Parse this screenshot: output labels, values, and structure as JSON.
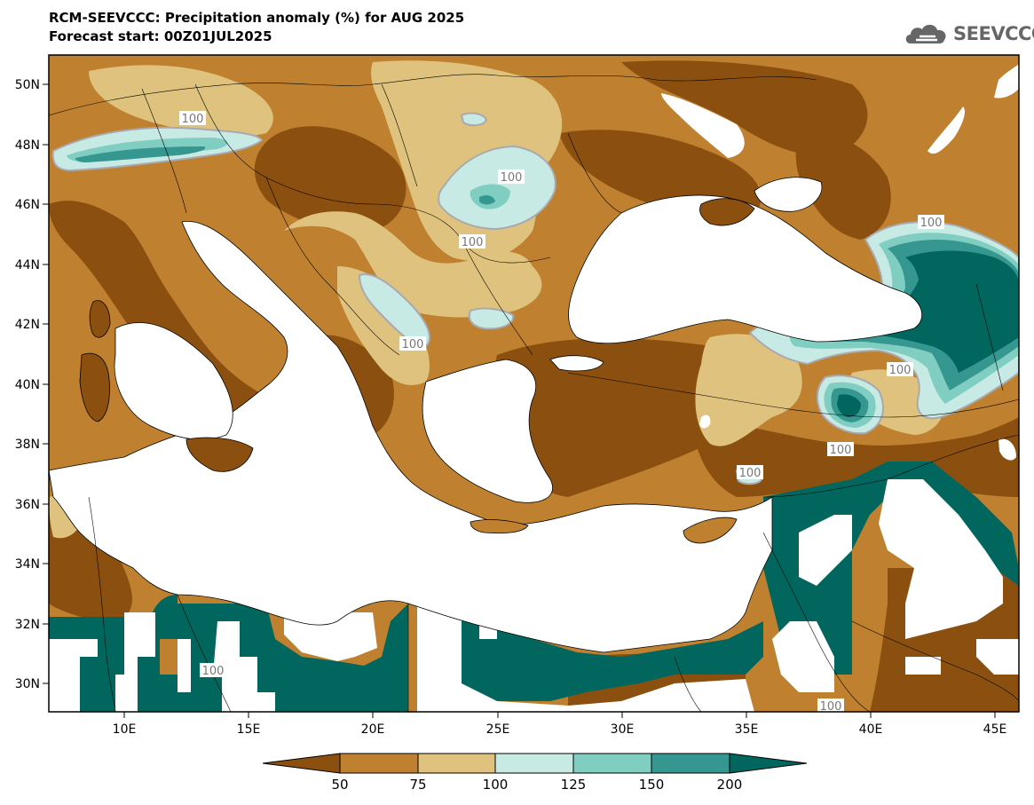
{
  "header": {
    "title_line1": "RCM-SEEVCCC: Precipitation anomaly (%) for AUG 2025",
    "title_line2": "Forecast start: 00Z01JUL2025"
  },
  "logo": {
    "text": "SEEVCCC",
    "icon": "cloud-icon",
    "color": "#666666"
  },
  "map": {
    "lat_labels": [
      "50N",
      "48N",
      "46N",
      "44N",
      "42N",
      "40N",
      "38N",
      "36N",
      "34N",
      "32N",
      "30N"
    ],
    "lon_labels": [
      "10E",
      "15E",
      "20E",
      "25E",
      "30E",
      "35E",
      "40E",
      "45E"
    ],
    "contour_labels": [
      "100",
      "100",
      "100",
      "100",
      "100",
      "100",
      "100",
      "100",
      "100",
      "100"
    ],
    "colors": {
      "lt50": "#8b5010",
      "50_75": "#bf8030",
      "75_100": "#dfc27d",
      "100_125": "#c7eae5",
      "125_150": "#80cdc1",
      "150_200": "#35978f",
      "gt200": "#01665e",
      "sea": "#ffffff",
      "contour": "#a9a9b0"
    }
  },
  "colorbar": {
    "ticks": [
      "50",
      "75",
      "100",
      "125",
      "150",
      "200"
    ]
  }
}
